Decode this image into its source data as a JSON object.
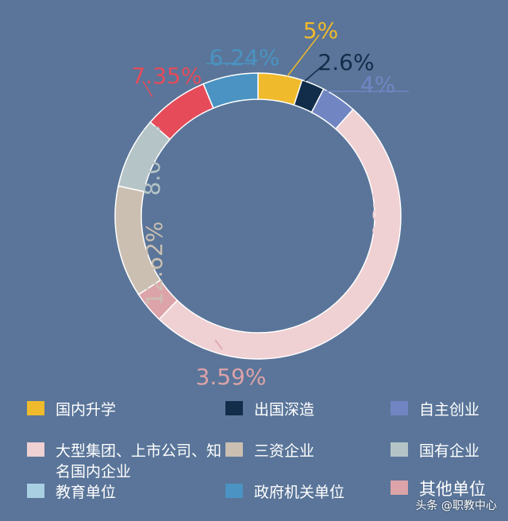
{
  "chart_data": {
    "type": "pie",
    "subtype": "donut",
    "slices": [
      {
        "name": "国内升学",
        "value": 5,
        "label": "5%",
        "color": "#efba2b"
      },
      {
        "name": "出国深造",
        "value": 2.6,
        "label": "2.6%",
        "color": "#112d4a"
      },
      {
        "name": "自主创业",
        "value": 4,
        "label": "4%",
        "color": "#7085c2"
      },
      {
        "name": "大型集团、上市公司、知名国内企业",
        "value": 50.56,
        "label": "50.56%",
        "color": "#efd0d3"
      },
      {
        "name": "其他单位",
        "value": 3.59,
        "label": "3.59%",
        "color": "#dca3a8"
      },
      {
        "name": "三资企业",
        "value": 12.62,
        "label": "12.62%",
        "color": "#cbbfb2"
      },
      {
        "name": "国有企业",
        "value": 8.04,
        "label": "8.04%",
        "color": "#b5c4c6"
      },
      {
        "name": "教育单位",
        "value": 7.35,
        "label": "7.35%",
        "color": "#e64b5a"
      },
      {
        "name": "政府机关单位",
        "value": 6.24,
        "label": "6.24%",
        "color": "#4a93c2"
      }
    ],
    "legend": {
      "position": "bottom",
      "items": [
        {
          "label": "国内升学",
          "color": "#efba2b"
        },
        {
          "label": "出国深造",
          "color": "#112d4a"
        },
        {
          "label": "自主创业",
          "color": "#7085c2"
        },
        {
          "label": "大型集团、上市公司、知名国内企业",
          "color": "#efd0d3"
        },
        {
          "label": "三资企业",
          "color": "#cbbfb2"
        },
        {
          "label": "国有企业",
          "color": "#b5c4c6"
        },
        {
          "label": "教育单位",
          "color": "#a9cfe3"
        },
        {
          "label": "政府机关单位",
          "color": "#4a93c2"
        },
        {
          "label": "其他单位",
          "color": "#dca3a8"
        }
      ]
    }
  },
  "watermark": "头条 @职教中心",
  "colors": {
    "background": "#5a7599"
  }
}
